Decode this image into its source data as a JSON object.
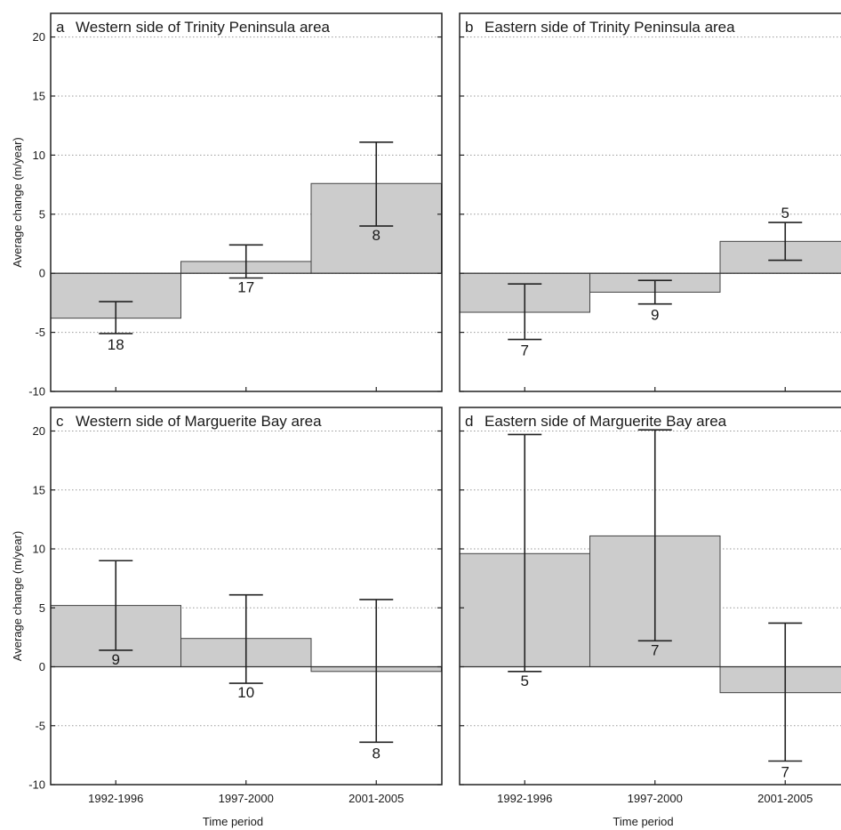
{
  "chart_data": [
    {
      "type": "bar",
      "panel": "a",
      "title": "Western side of Trinity Peninsula area",
      "categories": [
        "1992-1996",
        "1997-2000",
        "2001-2005"
      ],
      "values": [
        -3.8,
        1.0,
        7.6
      ],
      "error_low": [
        -5.1,
        -0.4,
        4.0
      ],
      "error_high": [
        -2.4,
        2.4,
        11.1
      ],
      "sample_sizes": [
        "18",
        "17",
        "8"
      ],
      "ylabel": "Average change (m/year)",
      "xlabel": "",
      "ylim": [
        -10,
        22
      ],
      "yticks": [
        -10,
        -5,
        0,
        5,
        10,
        15,
        20
      ],
      "grid": true
    },
    {
      "type": "bar",
      "panel": "b",
      "title": "Eastern side of Trinity Peninsula area",
      "categories": [
        "1992-1996",
        "1997-2000",
        "2001-2005"
      ],
      "values": [
        -3.3,
        -1.6,
        2.7
      ],
      "error_low": [
        -5.6,
        -2.6,
        1.1
      ],
      "error_high": [
        -0.9,
        -0.6,
        4.3
      ],
      "sample_sizes": [
        "7",
        "9",
        "5"
      ],
      "ylabel": "",
      "xlabel": "",
      "ylim": [
        -10,
        22
      ],
      "yticks": [
        -10,
        -5,
        0,
        5,
        10,
        15,
        20
      ],
      "grid": true
    },
    {
      "type": "bar",
      "panel": "c",
      "title": "Western side of Marguerite Bay area",
      "categories": [
        "1992-1996",
        "1997-2000",
        "2001-2005"
      ],
      "values": [
        5.2,
        2.4,
        -0.4
      ],
      "error_low": [
        1.4,
        -1.4,
        -6.4
      ],
      "error_high": [
        9.0,
        6.1,
        5.7
      ],
      "sample_sizes": [
        "9",
        "10",
        "8"
      ],
      "ylabel": "Average change (m/year)",
      "xlabel": "Time period",
      "ylim": [
        -10,
        22
      ],
      "yticks": [
        -10,
        -5,
        0,
        5,
        10,
        15,
        20
      ],
      "grid": true
    },
    {
      "type": "bar",
      "panel": "d",
      "title": "Eastern side of Marguerite Bay area",
      "categories": [
        "1992-1996",
        "1997-2000",
        "2001-2005"
      ],
      "values": [
        9.6,
        11.1,
        -2.2
      ],
      "error_low": [
        -0.4,
        2.2,
        -8.0
      ],
      "error_high": [
        19.7,
        20.1,
        3.7
      ],
      "sample_sizes": [
        "5",
        "7",
        "7"
      ],
      "ylabel": "",
      "xlabel": "Time period",
      "ylim": [
        -10,
        22
      ],
      "yticks": [
        -10,
        -5,
        0,
        5,
        10,
        15,
        20
      ],
      "grid": true
    }
  ],
  "style": {
    "bar_fill": "#cccccc",
    "bar_stroke": "#444444",
    "grid_color": "#9a9a9a",
    "frame_color": "#222222"
  }
}
